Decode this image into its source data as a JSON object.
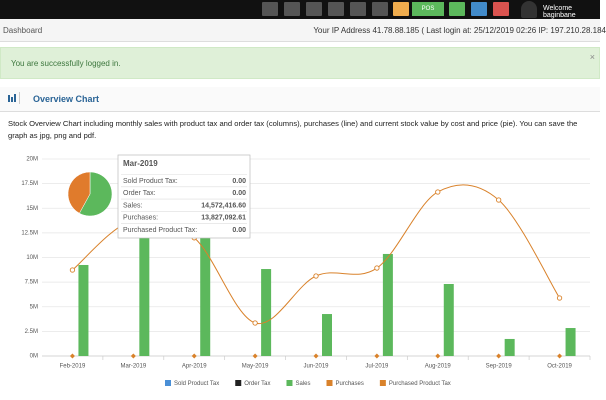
{
  "nav": {
    "pos": "POS",
    "welcome": "Welcome baginbane"
  },
  "breadcrumb": {
    "title": "Dashboard",
    "ip_info": "Your IP Address 41.78.88.185 ( Last login at: 25/12/2019 02:26 IP: 197.210.28.184"
  },
  "alert": {
    "message": "You are successfully logged in.",
    "close": "×"
  },
  "panel": {
    "title": "Overview Chart",
    "description": "Stock Overview Chart including monthly sales with product tax and order tax (columns), purchases (line) and current stock value by cost and price (pie). You can save the graph as jpg, png and pdf."
  },
  "tooltip": {
    "title": "Mar-2019",
    "rows": [
      [
        "Sold Product Tax:",
        "0.00"
      ],
      [
        "Order Tax:",
        "0.00"
      ],
      [
        "Sales:",
        "14,572,416.60"
      ],
      [
        "Purchases:",
        "13,827,092.61"
      ],
      [
        "Purchased Product Tax:",
        "0.00"
      ]
    ]
  },
  "chart_data": [
    {
      "type": "combo",
      "categories": [
        "Feb-2019",
        "Mar-2019",
        "Apr-2019",
        "May-2019",
        "Jun-2019",
        "Jul-2019",
        "Aug-2019",
        "Sep-2019",
        "Oct-2019"
      ],
      "ylim": [
        0,
        20
      ],
      "yticks": [
        {
          "value": 0,
          "label": "0M"
        },
        {
          "value": 2.5,
          "label": "2.5M"
        },
        {
          "value": 5,
          "label": "5M"
        },
        {
          "value": 7.5,
          "label": "7.5M"
        },
        {
          "value": 10,
          "label": "10M"
        },
        {
          "value": 12.5,
          "label": "12.5M"
        },
        {
          "value": 15,
          "label": "15M"
        },
        {
          "value": 17.5,
          "label": "17.5M"
        },
        {
          "value": 20,
          "label": "20M"
        }
      ],
      "grid": true,
      "series": [
        {
          "name": "Sold Product Tax",
          "kind": "column",
          "color": "#4a8fd6",
          "values": [
            0,
            0,
            0,
            0,
            0,
            0,
            0,
            0,
            0
          ]
        },
        {
          "name": "Order Tax",
          "kind": "column",
          "color": "#222222",
          "values": [
            0,
            0,
            0,
            0,
            0,
            0,
            0,
            0,
            0
          ]
        },
        {
          "name": "Sales",
          "kind": "column",
          "color": "#5cb85c",
          "values": [
            9.24,
            14.5724166,
            12.8,
            8.83,
            4.26,
            10.36,
            7.31,
            1.73,
            2.84
          ]
        },
        {
          "name": "Purchases",
          "kind": "line",
          "marker": "circle",
          "color": "#d9822b",
          "values": [
            8.73,
            13.8270926,
            12.0,
            3.35,
            8.12,
            8.93,
            16.65,
            15.84,
            5.89
          ]
        },
        {
          "name": "Purchased Product Tax",
          "kind": "line",
          "marker": "diamond",
          "color": "#d9822b",
          "values": [
            0,
            0,
            0,
            0,
            0,
            0,
            0,
            0,
            0
          ]
        }
      ]
    },
    {
      "type": "pie",
      "values": [
        58,
        42
      ],
      "colors": [
        "#5cb85c",
        "#e07b2c"
      ]
    }
  ]
}
